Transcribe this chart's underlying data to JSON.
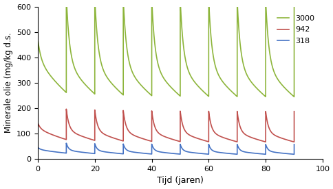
{
  "title": "",
  "xlabel": "Tijd (jaren)",
  "ylabel": "Minerale olie (mg/kg d.s.",
  "xlim": [
    0,
    100
  ],
  "ylim": [
    0,
    600
  ],
  "xticks": [
    0,
    20,
    40,
    60,
    80,
    100
  ],
  "yticks": [
    0,
    100,
    200,
    300,
    400,
    500,
    600
  ],
  "spike_interval": 10,
  "n_spikes": 9,
  "series": [
    {
      "label": "3000",
      "color": "#8db53b",
      "init_slow": 390,
      "init_fast": 80,
      "add_slow": 120,
      "add_fast": 260,
      "k_slow": 0.04,
      "k_fast": 0.9
    },
    {
      "label": "942",
      "color": "#c0504d",
      "init_slow": 120,
      "init_fast": 22,
      "add_slow": 38,
      "add_fast": 82,
      "k_slow": 0.045,
      "k_fast": 1.1
    },
    {
      "label": "318",
      "color": "#4472c4",
      "init_slow": 38,
      "init_fast": 8,
      "add_slow": 12,
      "add_fast": 27,
      "k_slow": 0.05,
      "k_fast": 1.3
    }
  ],
  "background_color": "#ffffff",
  "linewidth": 1.2
}
